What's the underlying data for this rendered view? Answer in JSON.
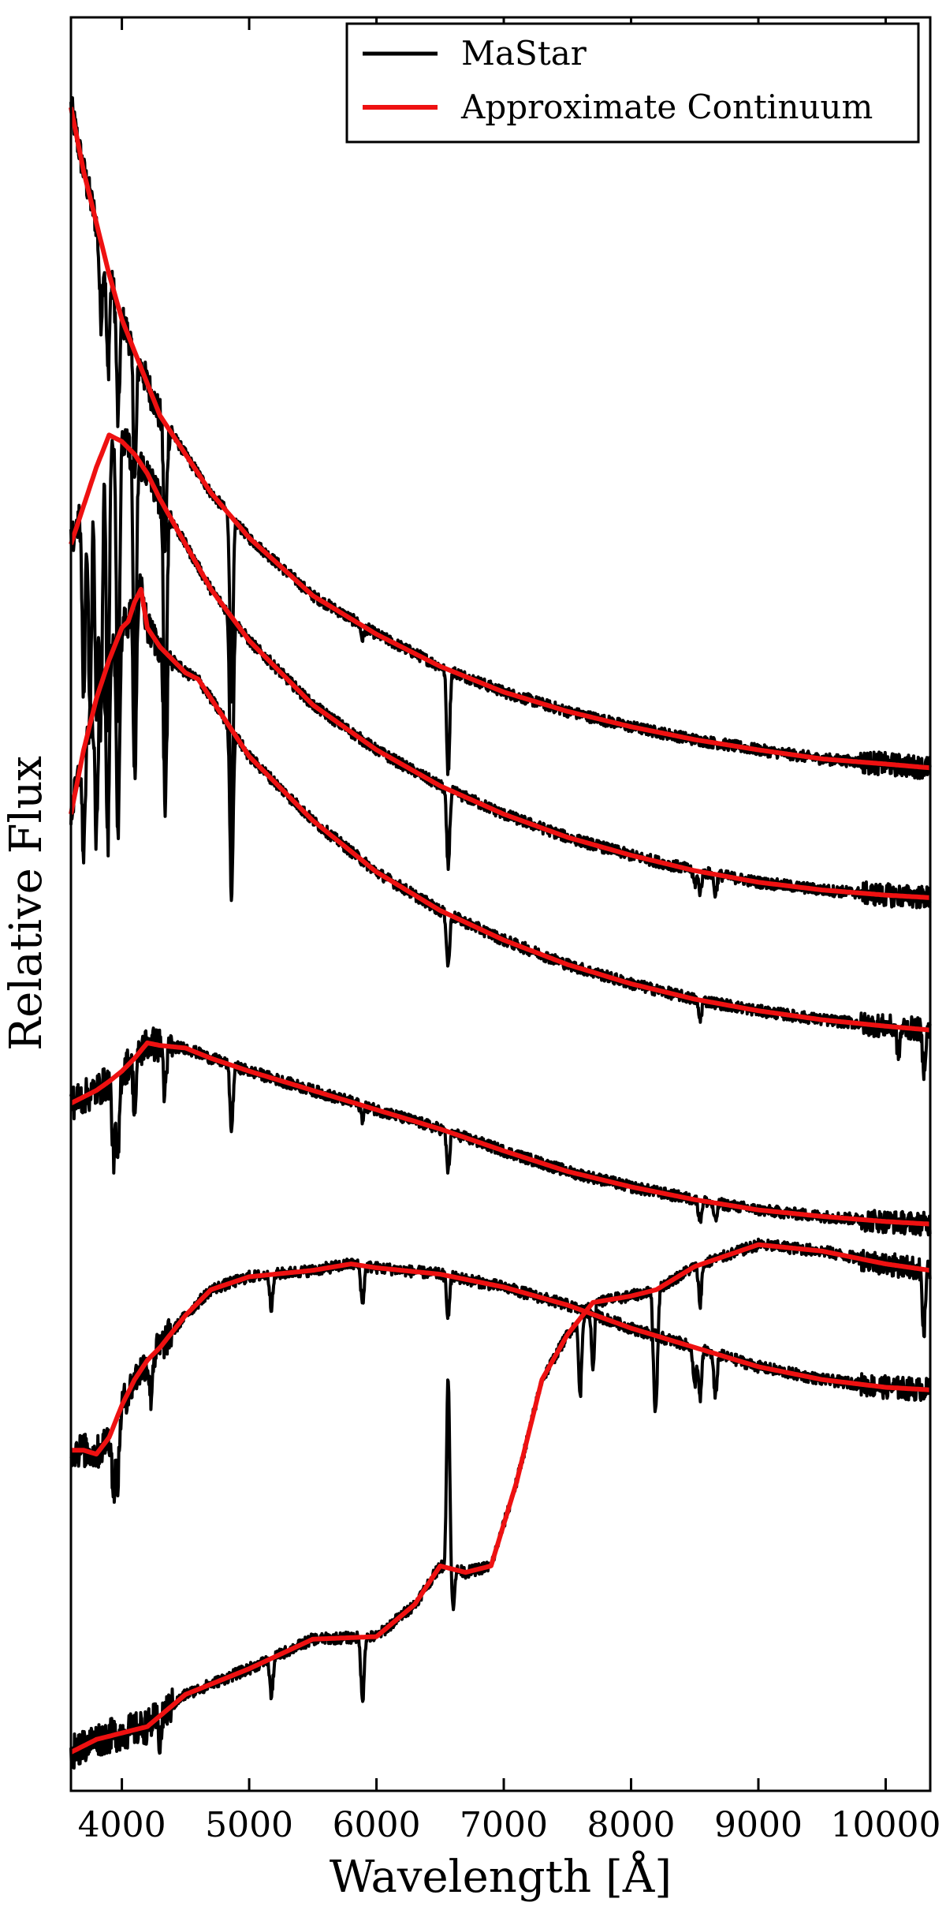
{
  "chart_data": {
    "type": "line",
    "title": "",
    "xlabel": "Wavelength [Å]",
    "ylabel": "Relative Flux",
    "xlim": [
      3600,
      10350
    ],
    "ylim": [
      -0.2,
      13.6
    ],
    "xticks": [
      4000,
      5000,
      6000,
      7000,
      8000,
      9000,
      10000
    ],
    "y_tick_labels_shown": false,
    "grid": false,
    "legend": {
      "location": "top-right",
      "entries": [
        {
          "label": "MaStar",
          "color": "#000000"
        },
        {
          "label": "Approximate Continuum",
          "color": "#ee1111"
        }
      ]
    },
    "series_note": "Six stacked stellar spectra, each with its continuum fit; values in relative flux units (offset stacking).",
    "spectra": [
      {
        "continuum": [
          [
            3600,
            12.9
          ],
          [
            3700,
            12.4
          ],
          [
            3800,
            12.0
          ],
          [
            3900,
            11.6
          ],
          [
            4000,
            11.25
          ],
          [
            4100,
            11.0
          ],
          [
            4200,
            10.75
          ],
          [
            4300,
            10.5
          ],
          [
            4500,
            10.2
          ],
          [
            4700,
            9.9
          ],
          [
            5000,
            9.55
          ],
          [
            5500,
            9.1
          ],
          [
            6000,
            8.8
          ],
          [
            6500,
            8.55
          ],
          [
            7000,
            8.35
          ],
          [
            7500,
            8.2
          ],
          [
            8000,
            8.08
          ],
          [
            8500,
            7.98
          ],
          [
            9000,
            7.9
          ],
          [
            9500,
            7.83
          ],
          [
            10000,
            7.79
          ],
          [
            10350,
            7.76
          ]
        ],
        "lines": [
          [
            3835,
            0.6
          ],
          [
            3890,
            0.8
          ],
          [
            3970,
            0.9
          ],
          [
            4102,
            1.0
          ],
          [
            4340,
            1.0
          ],
          [
            4861,
            1.4
          ],
          [
            5890,
            0.1
          ],
          [
            6563,
            0.8
          ]
        ]
      },
      {
        "continuum": [
          [
            3600,
            9.5
          ],
          [
            3700,
            9.8
          ],
          [
            3800,
            10.1
          ],
          [
            3900,
            10.35
          ],
          [
            4000,
            10.3
          ],
          [
            4100,
            10.2
          ],
          [
            4200,
            10.05
          ],
          [
            4300,
            9.85
          ],
          [
            4500,
            9.5
          ],
          [
            4700,
            9.15
          ],
          [
            5000,
            8.75
          ],
          [
            5500,
            8.25
          ],
          [
            6000,
            7.9
          ],
          [
            6500,
            7.62
          ],
          [
            7000,
            7.4
          ],
          [
            7500,
            7.22
          ],
          [
            8000,
            7.08
          ],
          [
            8500,
            6.96
          ],
          [
            9000,
            6.87
          ],
          [
            9500,
            6.81
          ],
          [
            10000,
            6.77
          ],
          [
            10350,
            6.75
          ]
        ],
        "lines": [
          [
            3700,
            1.5
          ],
          [
            3750,
            1.8
          ],
          [
            3800,
            1.9
          ],
          [
            3835,
            2.1
          ],
          [
            3890,
            2.3
          ],
          [
            3970,
            2.2
          ],
          [
            4102,
            2.1
          ],
          [
            4340,
            2.0
          ],
          [
            4861,
            1.8
          ],
          [
            6563,
            0.6
          ],
          [
            8500,
            0.1
          ],
          [
            8542,
            0.15
          ],
          [
            8662,
            0.15
          ]
        ]
      },
      {
        "continuum": [
          [
            3600,
            7.4
          ],
          [
            3700,
            7.9
          ],
          [
            3800,
            8.3
          ],
          [
            3900,
            8.6
          ],
          [
            4000,
            8.85
          ],
          [
            4050,
            8.9
          ],
          [
            4100,
            9.05
          ],
          [
            4150,
            9.15
          ],
          [
            4200,
            8.85
          ],
          [
            4300,
            8.7
          ],
          [
            4400,
            8.6
          ],
          [
            4500,
            8.5
          ],
          [
            4600,
            8.45
          ],
          [
            4800,
            8.15
          ],
          [
            5000,
            7.85
          ],
          [
            5500,
            7.35
          ],
          [
            6000,
            6.95
          ],
          [
            6500,
            6.65
          ],
          [
            7000,
            6.42
          ],
          [
            7500,
            6.23
          ],
          [
            8000,
            6.08
          ],
          [
            8500,
            5.96
          ],
          [
            9000,
            5.87
          ],
          [
            9500,
            5.8
          ],
          [
            10000,
            5.75
          ],
          [
            10350,
            5.72
          ]
        ],
        "lines": [
          [
            3700,
            0.8
          ],
          [
            3800,
            1.1
          ],
          [
            3890,
            1.4
          ],
          [
            3970,
            1.5
          ],
          [
            4102,
            1.3
          ],
          [
            4340,
            1.2
          ],
          [
            4861,
            1.3
          ],
          [
            6563,
            0.4
          ],
          [
            8542,
            0.15
          ],
          [
            10100,
            0.2
          ],
          [
            10300,
            0.3
          ]
        ]
      },
      {
        "continuum": [
          [
            3600,
            5.15
          ],
          [
            3700,
            5.2
          ],
          [
            3800,
            5.25
          ],
          [
            3900,
            5.32
          ],
          [
            4000,
            5.4
          ],
          [
            4100,
            5.5
          ],
          [
            4200,
            5.62
          ],
          [
            4300,
            5.6
          ],
          [
            4500,
            5.58
          ],
          [
            4700,
            5.5
          ],
          [
            5000,
            5.4
          ],
          [
            5500,
            5.25
          ],
          [
            6000,
            5.1
          ],
          [
            6500,
            4.95
          ],
          [
            7000,
            4.78
          ],
          [
            7500,
            4.62
          ],
          [
            8000,
            4.5
          ],
          [
            8500,
            4.4
          ],
          [
            9000,
            4.32
          ],
          [
            9500,
            4.27
          ],
          [
            10000,
            4.23
          ],
          [
            10350,
            4.21
          ]
        ],
        "lines": [
          [
            3934,
            0.6
          ],
          [
            3968,
            0.7
          ],
          [
            4102,
            0.4
          ],
          [
            4340,
            0.4
          ],
          [
            4861,
            0.5
          ],
          [
            5890,
            0.1
          ],
          [
            6563,
            0.3
          ],
          [
            8542,
            0.15
          ],
          [
            8662,
            0.15
          ]
        ]
      },
      {
        "continuum": [
          [
            3600,
            2.45
          ],
          [
            3700,
            2.45
          ],
          [
            3800,
            2.42
          ],
          [
            3900,
            2.55
          ],
          [
            4000,
            2.8
          ],
          [
            4100,
            3.0
          ],
          [
            4200,
            3.15
          ],
          [
            4300,
            3.25
          ],
          [
            4500,
            3.5
          ],
          [
            4700,
            3.7
          ],
          [
            5000,
            3.8
          ],
          [
            5500,
            3.85
          ],
          [
            5800,
            3.9
          ],
          [
            6000,
            3.87
          ],
          [
            6500,
            3.82
          ],
          [
            7000,
            3.72
          ],
          [
            7500,
            3.58
          ],
          [
            8000,
            3.4
          ],
          [
            8500,
            3.25
          ],
          [
            9000,
            3.1
          ],
          [
            9500,
            3.0
          ],
          [
            10000,
            2.94
          ],
          [
            10350,
            2.92
          ]
        ],
        "lines": [
          [
            3934,
            0.5
          ],
          [
            3968,
            0.5
          ],
          [
            4227,
            0.3
          ],
          [
            5175,
            0.25
          ],
          [
            5890,
            0.3
          ],
          [
            6563,
            0.3
          ],
          [
            8498,
            0.3
          ],
          [
            8542,
            0.4
          ],
          [
            8662,
            0.35
          ]
        ]
      },
      {
        "continuum": [
          [
            3600,
            0.1
          ],
          [
            3800,
            0.2
          ],
          [
            4000,
            0.25
          ],
          [
            4200,
            0.3
          ],
          [
            4500,
            0.55
          ],
          [
            5000,
            0.75
          ],
          [
            5500,
            0.98
          ],
          [
            6000,
            1.0
          ],
          [
            6300,
            1.25
          ],
          [
            6500,
            1.55
          ],
          [
            6700,
            1.5
          ],
          [
            6900,
            1.55
          ],
          [
            7100,
            2.2
          ],
          [
            7300,
            3.0
          ],
          [
            7500,
            3.35
          ],
          [
            7700,
            3.6
          ],
          [
            8000,
            3.65
          ],
          [
            8200,
            3.7
          ],
          [
            8500,
            3.88
          ],
          [
            9000,
            4.05
          ],
          [
            9500,
            4.0
          ],
          [
            10000,
            3.9
          ],
          [
            10350,
            3.85
          ]
        ],
        "lines": [
          [
            4300,
            0.2
          ],
          [
            5175,
            0.3
          ],
          [
            5890,
            0.5
          ],
          [
            6563,
            -1.5
          ],
          [
            6600,
            0.3
          ],
          [
            7600,
            0.6
          ],
          [
            7700,
            0.5
          ],
          [
            8183,
            0.6
          ],
          [
            8200,
            0.6
          ],
          [
            8542,
            0.3
          ],
          [
            10300,
            0.5
          ]
        ]
      }
    ]
  }
}
